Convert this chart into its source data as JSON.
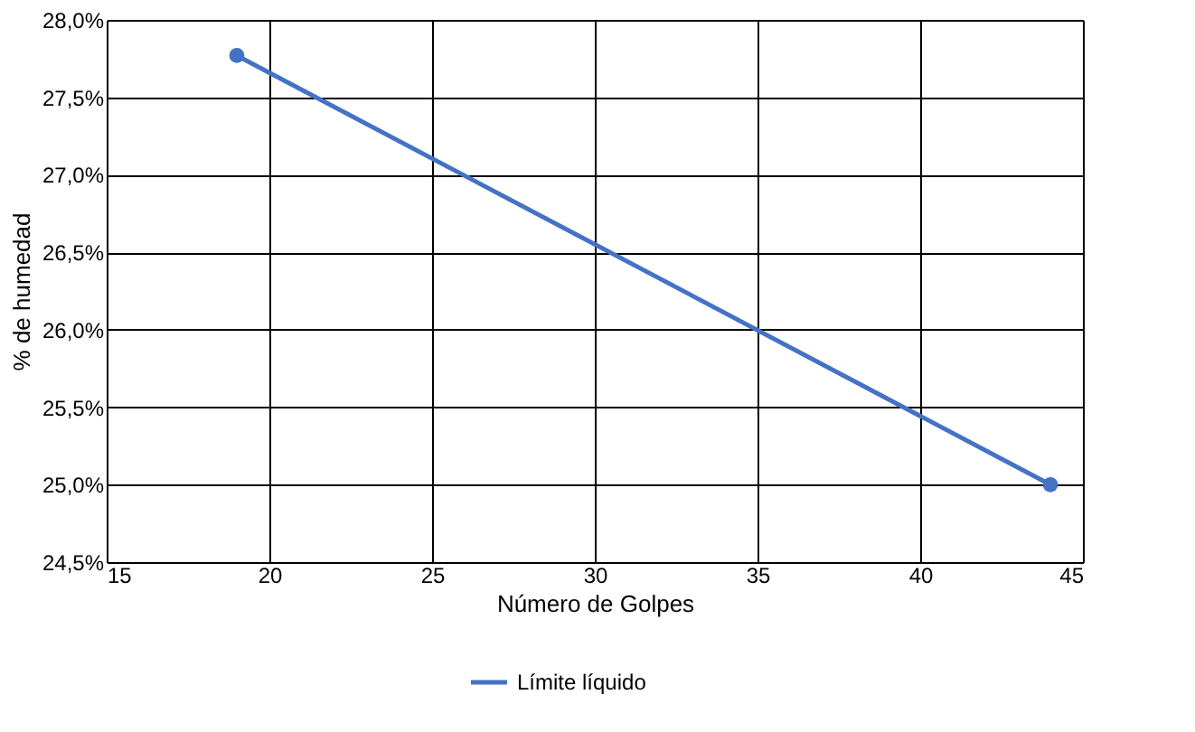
{
  "chart_data": {
    "type": "line",
    "xlabel": "Número de Golpes",
    "ylabel": "% de humedad",
    "x": [
      19,
      44
    ],
    "series": [
      {
        "name": "Límite líquido",
        "color": "#4472c4",
        "values": [
          27.77,
          25.0
        ]
      }
    ],
    "xlim": [
      15,
      45
    ],
    "xticks": [
      15,
      20,
      25,
      30,
      35,
      40,
      45
    ],
    "ylim": [
      24.5,
      28.0
    ],
    "yticks": [
      {
        "value": 24.5,
        "label": "24,5%"
      },
      {
        "value": 25.0,
        "label": "25,0%"
      },
      {
        "value": 25.5,
        "label": "25,5%"
      },
      {
        "value": 26.0,
        "label": "26,0%"
      },
      {
        "value": 26.5,
        "label": "26,5%"
      },
      {
        "value": 27.0,
        "label": "27,0%"
      },
      {
        "value": 27.5,
        "label": "27,5%"
      },
      {
        "value": 28.0,
        "label": "28,0%"
      }
    ],
    "grid": true,
    "legend": "bottom",
    "marker": "circle",
    "line_style": "solid"
  }
}
